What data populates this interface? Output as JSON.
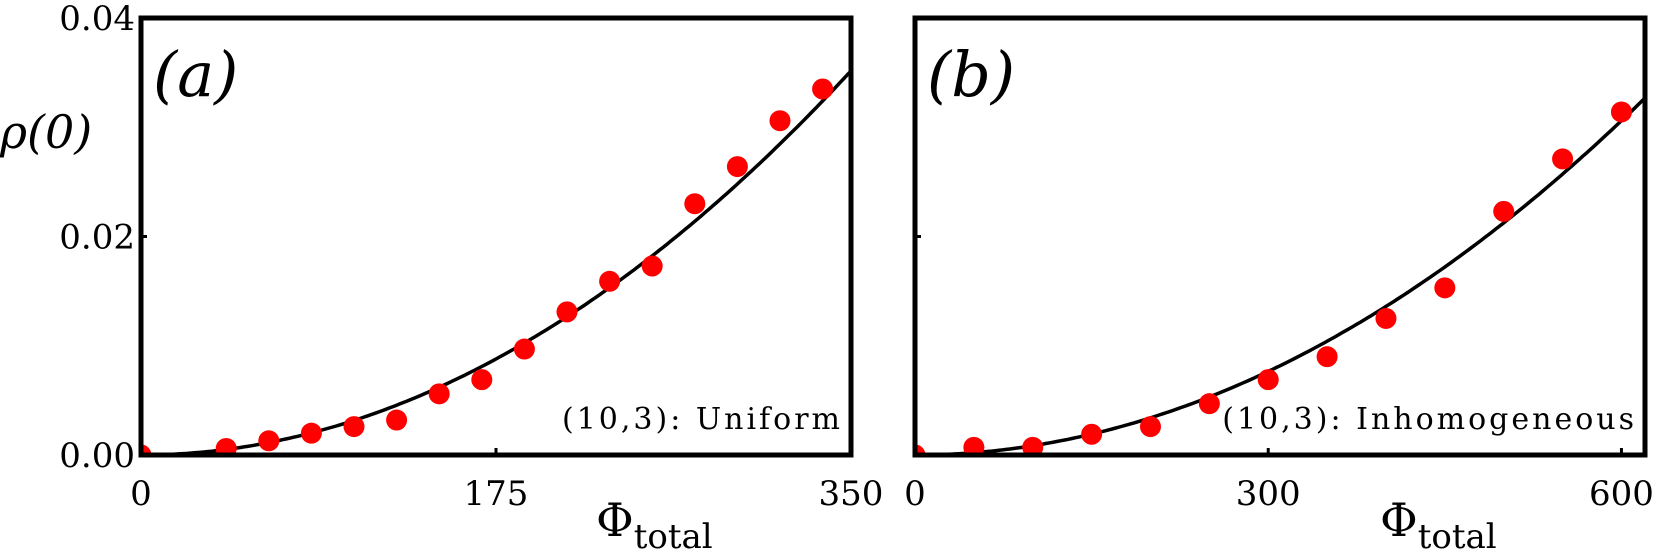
{
  "chart_data": [
    {
      "type": "scatter",
      "panel_label": "(a)",
      "annotation": "(10,3): Uniform",
      "xlabel": "Φ",
      "xlabel_sub": "total",
      "ylabel": "ρ(0)",
      "xlim": [
        0,
        350
      ],
      "ylim": [
        0,
        0.04
      ],
      "xticks": [
        "0",
        "175",
        "350"
      ],
      "yticks": [
        "0.00",
        "0.02",
        "0.04"
      ],
      "xtick_values": [
        0,
        175,
        350
      ],
      "ytick_values": [
        0,
        0.02,
        0.04
      ],
      "marker_color": "#ff0000",
      "line_color": "#000000",
      "points": {
        "x": [
          0,
          42,
          63,
          84,
          105,
          126,
          147,
          168,
          189,
          210,
          231,
          252,
          273,
          294,
          315,
          336
        ],
        "y": [
          0.0,
          0.0006,
          0.0013,
          0.002,
          0.0026,
          0.0032,
          0.0056,
          0.0069,
          0.0097,
          0.0131,
          0.0159,
          0.0173,
          0.023,
          0.0264,
          0.0306,
          0.0335
        ]
      },
      "fit_curve": {
        "form": "quadratic",
        "coef": 2.87e-07
      }
    },
    {
      "type": "scatter",
      "panel_label": "(b)",
      "annotation": "(10,3): Inhomogeneous",
      "xlabel": "Φ",
      "xlabel_sub": "total",
      "xlim": [
        0,
        620
      ],
      "ylim": [
        0,
        0.04
      ],
      "xticks": [
        "0",
        "300",
        "600"
      ],
      "xtick_values": [
        0,
        300,
        600
      ],
      "ytick_values": [
        0,
        0.02,
        0.04
      ],
      "marker_color": "#ff0000",
      "line_color": "#000000",
      "points": {
        "x": [
          0,
          50,
          100,
          150,
          200,
          250,
          300,
          350,
          400,
          450,
          500,
          550,
          600
        ],
        "y": [
          0.0,
          0.0007,
          0.0007,
          0.0019,
          0.0026,
          0.0047,
          0.0069,
          0.009,
          0.0125,
          0.0153,
          0.0223,
          0.0271,
          0.0314
        ]
      },
      "fit_curve": {
        "form": "quadratic",
        "coef": 8.5e-08
      }
    }
  ]
}
